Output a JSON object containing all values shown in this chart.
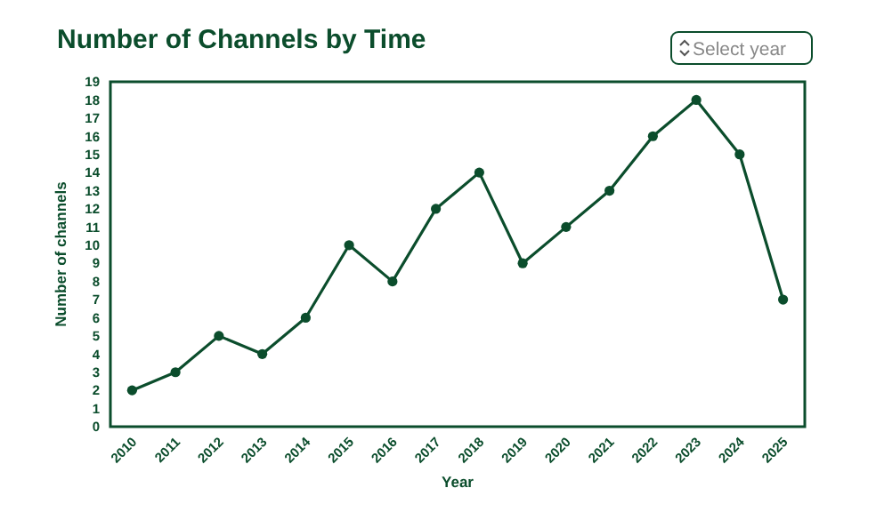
{
  "chart_data": {
    "type": "line",
    "title": "Number of Channels by Time",
    "xlabel": "Year",
    "ylabel": "Number of channels",
    "categories": [
      "2010",
      "2011",
      "2012",
      "2013",
      "2014",
      "2015",
      "2016",
      "2017",
      "2018",
      "2019",
      "2020",
      "2021",
      "2022",
      "2023",
      "2024",
      "2025"
    ],
    "series": [
      {
        "color": "#0b4d2c",
        "values": [
          2,
          3,
          5,
          4,
          6,
          10,
          8,
          12,
          14,
          9,
          11,
          13,
          16,
          18,
          15,
          7
        ]
      }
    ],
    "ylim": [
      0,
      19
    ],
    "yticks": [
      0,
      1,
      2,
      3,
      4,
      5,
      6,
      7,
      8,
      9,
      10,
      11,
      12,
      13,
      14,
      15,
      16,
      17,
      18,
      19
    ],
    "grid": false,
    "marker": "circle",
    "line_style": "solid",
    "annotations": [
      "Select year"
    ]
  }
}
